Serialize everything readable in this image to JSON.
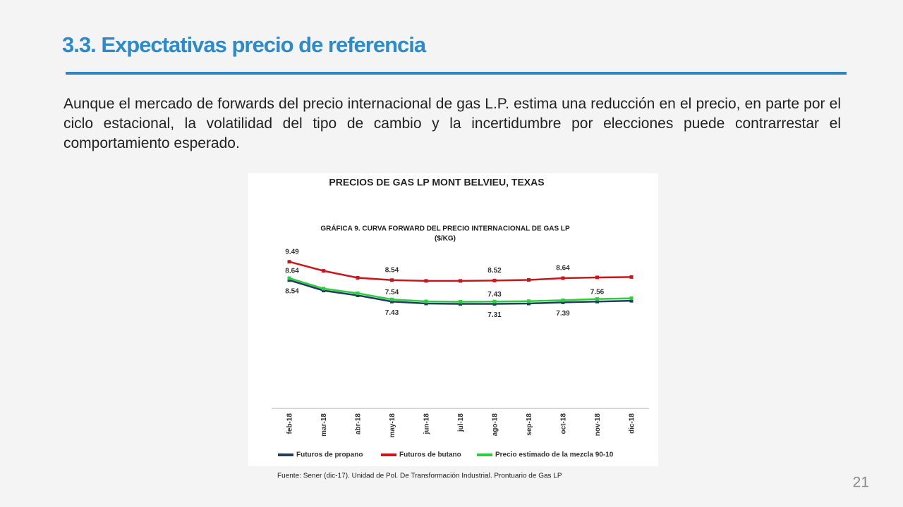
{
  "title": "3.3. Expectativas precio de referencia",
  "body": "Aunque el mercado de forwards del precio internacional de gas L.P. estima una reducción en el precio, en parte por el ciclo estacional, la volatilidad del tipo de cambio y la incertidumbre por elecciones puede contrarrestar el comportamiento esperado.",
  "source": "Fuente: Sener (dic-17). Unidad de Pol. De Transformación Industrial. Prontuario de Gas LP",
  "page_number": "21",
  "chart_data": {
    "type": "line",
    "title": "PRECIOS DE GAS LP MONT BELVIEU, TEXAS",
    "subtitle": "GRÁFICA 9. CURVA FORWARD DEL PRECIO INTERNACIONAL DE GAS LP",
    "unit": "($/KG)",
    "categories": [
      "feb-18",
      "mar-18",
      "abr-18",
      "may-18",
      "jun-18",
      "jul-18",
      "ago-18",
      "sep-18",
      "oct-18",
      "nov-18",
      "dic-18"
    ],
    "ylim": [
      1.9,
      10.5
    ],
    "series": [
      {
        "name": "Futuros de propano",
        "color": "#1f3d5c",
        "values": [
          8.54,
          8.0,
          7.75,
          7.43,
          7.33,
          7.31,
          7.31,
          7.33,
          7.39,
          7.43,
          7.47
        ],
        "value_labels": [
          "8.54",
          null,
          null,
          "7.43",
          null,
          null,
          "7.31",
          null,
          "7.39",
          null,
          null
        ]
      },
      {
        "name": "Futuros de butano",
        "color": "#c8161d",
        "values": [
          9.49,
          9.02,
          8.66,
          8.54,
          8.5,
          8.5,
          8.52,
          8.55,
          8.64,
          8.68,
          8.7
        ],
        "value_labels": [
          "9.49",
          null,
          null,
          "8.54",
          null,
          null,
          "8.52",
          null,
          "8.64",
          null,
          null
        ]
      },
      {
        "name": "Precio estimado de la mezcla 90-10",
        "color": "#2ecc40",
        "values": [
          8.64,
          8.1,
          7.86,
          7.54,
          7.44,
          7.42,
          7.43,
          7.45,
          7.5,
          7.56,
          7.6
        ],
        "value_labels": [
          "8.64",
          null,
          null,
          "7.54",
          null,
          null,
          "7.43",
          null,
          null,
          "7.56",
          null
        ]
      }
    ]
  }
}
